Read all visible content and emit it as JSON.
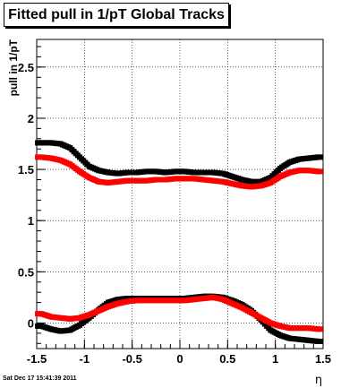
{
  "title": "Fitted pull in 1/pT  Global Tracks",
  "footer": "Sat Dec 17 15:41:39 2011",
  "chart_data": {
    "type": "scatter",
    "title": "Fitted pull in 1/pT  Global Tracks",
    "xlabel": "η",
    "ylabel": "pull in 1/pT",
    "xlim": [
      -1.5,
      1.5
    ],
    "ylim": [
      -0.25,
      2.77
    ],
    "xticks": [
      -1.5,
      -1,
      -0.5,
      0,
      0.5,
      1,
      1.5
    ],
    "xtick_labels": [
      "-1.5",
      "-1",
      "-0.5",
      "0",
      "0.5",
      "1",
      "1.5"
    ],
    "yticks": [
      0,
      0.5,
      1,
      1.5,
      2,
      2.5
    ],
    "ytick_labels": [
      "0",
      "0.5",
      "1",
      "1.5",
      "2",
      "2.5"
    ],
    "grid": true,
    "series": [
      {
        "color": "#000000",
        "x": [
          -1.45,
          -1.35,
          -1.25,
          -1.15,
          -1.05,
          -0.95,
          -0.85,
          -0.75,
          -0.65,
          -0.55,
          -0.45,
          -0.35,
          -0.25,
          -0.15,
          -0.05,
          0.05,
          0.15,
          0.25,
          0.35,
          0.45,
          0.55,
          0.65,
          0.75,
          0.85,
          0.95,
          1.05,
          1.15,
          1.25,
          1.35,
          1.45
        ],
        "y": [
          1.76,
          1.76,
          1.75,
          1.71,
          1.62,
          1.53,
          1.49,
          1.47,
          1.46,
          1.47,
          1.47,
          1.48,
          1.48,
          1.47,
          1.48,
          1.48,
          1.47,
          1.47,
          1.47,
          1.46,
          1.43,
          1.4,
          1.38,
          1.38,
          1.42,
          1.51,
          1.57,
          1.6,
          1.61,
          1.62
        ]
      },
      {
        "color": "#ff0000",
        "x": [
          -1.45,
          -1.35,
          -1.25,
          -1.15,
          -1.05,
          -0.95,
          -0.85,
          -0.75,
          -0.65,
          -0.55,
          -0.45,
          -0.35,
          -0.25,
          -0.15,
          -0.05,
          0.05,
          0.15,
          0.25,
          0.35,
          0.45,
          0.55,
          0.65,
          0.75,
          0.85,
          0.95,
          1.05,
          1.15,
          1.25,
          1.35,
          1.45
        ],
        "y": [
          1.62,
          1.61,
          1.59,
          1.55,
          1.48,
          1.42,
          1.38,
          1.37,
          1.38,
          1.39,
          1.39,
          1.39,
          1.4,
          1.4,
          1.41,
          1.41,
          1.41,
          1.4,
          1.39,
          1.38,
          1.36,
          1.34,
          1.33,
          1.34,
          1.37,
          1.43,
          1.47,
          1.49,
          1.49,
          1.48
        ]
      },
      {
        "color": "#000000",
        "x": [
          -1.45,
          -1.35,
          -1.25,
          -1.15,
          -1.05,
          -0.95,
          -0.85,
          -0.75,
          -0.65,
          -0.55,
          -0.45,
          -0.35,
          -0.25,
          -0.15,
          -0.05,
          0.05,
          0.15,
          0.25,
          0.35,
          0.45,
          0.55,
          0.65,
          0.75,
          0.85,
          0.95,
          1.05,
          1.15,
          1.25,
          1.35,
          1.45
        ],
        "y": [
          -0.03,
          -0.06,
          -0.08,
          -0.07,
          -0.02,
          0.05,
          0.13,
          0.2,
          0.23,
          0.24,
          0.24,
          0.24,
          0.24,
          0.24,
          0.24,
          0.24,
          0.25,
          0.26,
          0.26,
          0.25,
          0.22,
          0.18,
          0.12,
          0.03,
          -0.07,
          -0.12,
          -0.15,
          -0.16,
          -0.17,
          -0.18
        ]
      },
      {
        "color": "#ff0000",
        "x": [
          -1.45,
          -1.35,
          -1.25,
          -1.15,
          -1.05,
          -0.95,
          -0.85,
          -0.75,
          -0.65,
          -0.55,
          -0.45,
          -0.35,
          -0.25,
          -0.15,
          -0.05,
          0.05,
          0.15,
          0.25,
          0.35,
          0.45,
          0.55,
          0.65,
          0.75,
          0.85,
          0.95,
          1.05,
          1.15,
          1.25,
          1.35,
          1.45
        ],
        "y": [
          0.09,
          0.06,
          0.05,
          0.04,
          0.05,
          0.08,
          0.12,
          0.16,
          0.19,
          0.21,
          0.22,
          0.22,
          0.22,
          0.22,
          0.22,
          0.22,
          0.23,
          0.24,
          0.25,
          0.23,
          0.19,
          0.15,
          0.1,
          0.05,
          0.0,
          -0.03,
          -0.05,
          -0.05,
          -0.05,
          -0.06
        ]
      }
    ]
  }
}
